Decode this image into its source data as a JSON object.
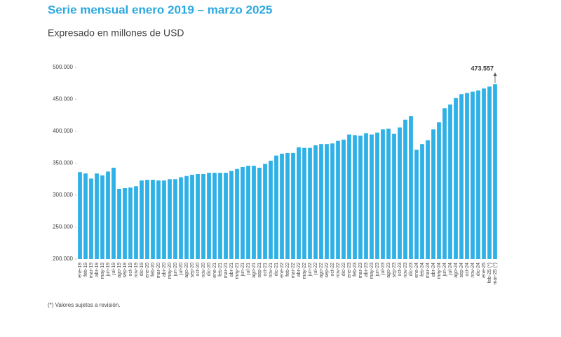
{
  "chart_data": {
    "type": "bar",
    "title": "Serie mensual enero 2019 – marzo 2025",
    "subtitle": "Expresado en millones de USD",
    "footnote": "(*) Valores sujetos a revisión.",
    "color": "#2eb1e6",
    "categories": [
      "ene-19",
      "feb-19",
      "mar-19",
      "abr-19",
      "may-19",
      "jun-19",
      "jul-19",
      "ago-19",
      "sep-19",
      "oct-19",
      "nov-19",
      "dic-19",
      "ene-20",
      "feb-20",
      "mar-20",
      "abr-20",
      "may-20",
      "jun-20",
      "jul-20",
      "ago-20",
      "sep-20",
      "oct-20",
      "nov-20",
      "dic-20",
      "ene-21",
      "feb-21",
      "mar-21",
      "abr-21",
      "may-21",
      "jun-21",
      "jul-21",
      "ago-21",
      "sep-21",
      "oct-21",
      "nov-21",
      "dic-21",
      "ene-22",
      "feb-22",
      "mar-22",
      "abr-22",
      "may-22",
      "jun-22",
      "jul-22",
      "ago-22",
      "sep-22",
      "oct-22",
      "nov-22",
      "dic-22",
      "ene-23",
      "feb-23",
      "mar-23",
      "abr-23",
      "may-23",
      "jun-23",
      "jul-23",
      "ago-23",
      "sep-23",
      "oct-23",
      "nov-23",
      "dic-23",
      "ene-24",
      "feb-24",
      "mar-24",
      "abr-24",
      "may-24",
      "jun-24",
      "jul-24",
      "ago-24",
      "sep-24",
      "oct-24",
      "nov-24",
      "dic-24",
      "ene-25",
      "feb-25 (*)",
      "mar-25 (*)"
    ],
    "values": [
      336000,
      334000,
      326000,
      334000,
      331000,
      337000,
      343000,
      310000,
      311000,
      312000,
      314000,
      323000,
      324000,
      324000,
      323000,
      323000,
      325000,
      325000,
      328000,
      330000,
      332000,
      333000,
      333000,
      335000,
      335000,
      335000,
      335000,
      338000,
      341000,
      344000,
      346000,
      346000,
      343000,
      349000,
      354000,
      362000,
      365000,
      366000,
      366000,
      375000,
      374000,
      374000,
      378000,
      380000,
      380000,
      381000,
      385000,
      387000,
      395000,
      394000,
      393000,
      397000,
      395000,
      398000,
      403000,
      404000,
      396000,
      406000,
      418000,
      424000,
      371000,
      380000,
      386000,
      403000,
      414000,
      436000,
      442000,
      452000,
      458000,
      460000,
      462000,
      464000,
      467000,
      470000,
      473557
    ],
    "value_labels": [
      null,
      null,
      null,
      null,
      null,
      null,
      null,
      null,
      null,
      null,
      null,
      null,
      null,
      null,
      null,
      null,
      null,
      null,
      null,
      null,
      null,
      null,
      null,
      null,
      null,
      null,
      null,
      null,
      null,
      null,
      null,
      null,
      null,
      null,
      null,
      null,
      null,
      null,
      null,
      null,
      null,
      null,
      null,
      null,
      null,
      null,
      null,
      null,
      null,
      null,
      null,
      null,
      null,
      null,
      null,
      null,
      null,
      null,
      null,
      null,
      null,
      null,
      null,
      null,
      null,
      null,
      null,
      null,
      null,
      null,
      null,
      null,
      null,
      null,
      "473.557"
    ],
    "ylim": [
      200000,
      500000
    ],
    "yticks": [
      {
        "value": 200000,
        "label": "200.000"
      },
      {
        "value": 250000,
        "label": "250.000"
      },
      {
        "value": 300000,
        "label": "300.000"
      },
      {
        "value": 350000,
        "label": "350.000"
      },
      {
        "value": 400000,
        "label": "400.000"
      },
      {
        "value": 450000,
        "label": "450.000"
      },
      {
        "value": 500000,
        "label": "500.000"
      }
    ]
  }
}
